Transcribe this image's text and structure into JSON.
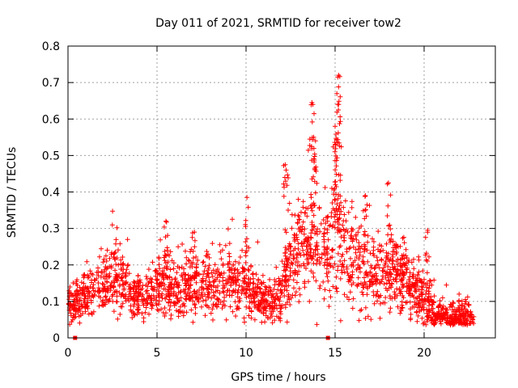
{
  "chart_data": {
    "type": "scatter",
    "title": "Day 011 of 2021, SRMTID for receiver tow2",
    "xlabel": "GPS time / hours",
    "ylabel": "SRMTID / TECUs",
    "xlim": [
      0,
      24
    ],
    "ylim": [
      0,
      0.8
    ],
    "xticks": [
      0,
      5,
      10,
      15,
      20
    ],
    "yticks": [
      0,
      0.1,
      0.2,
      0.3,
      0.4,
      0.5,
      0.6,
      0.7,
      0.8
    ],
    "ytick_labels": [
      "0",
      "0.1",
      "0.2",
      "0.3",
      "0.4",
      "0.5",
      "0.6",
      "0.7",
      "0.8"
    ],
    "grid": true,
    "marker": "+",
    "color": "#ff0000",
    "series": [
      {
        "name": "SRMTID",
        "profile": [
          [
            0.0,
            0.1,
            0.03
          ],
          [
            0.5,
            0.1,
            0.03
          ],
          [
            1.0,
            0.11,
            0.03
          ],
          [
            1.5,
            0.13,
            0.04
          ],
          [
            2.0,
            0.15,
            0.04
          ],
          [
            2.5,
            0.17,
            0.05
          ],
          [
            3.0,
            0.15,
            0.05
          ],
          [
            3.5,
            0.12,
            0.03
          ],
          [
            4.0,
            0.11,
            0.03
          ],
          [
            4.5,
            0.11,
            0.03
          ],
          [
            5.0,
            0.14,
            0.04
          ],
          [
            5.5,
            0.16,
            0.05
          ],
          [
            6.0,
            0.14,
            0.04
          ],
          [
            6.5,
            0.13,
            0.04
          ],
          [
            7.0,
            0.14,
            0.04
          ],
          [
            7.5,
            0.14,
            0.04
          ],
          [
            8.0,
            0.14,
            0.04
          ],
          [
            8.5,
            0.15,
            0.04
          ],
          [
            9.0,
            0.16,
            0.05
          ],
          [
            9.5,
            0.15,
            0.04
          ],
          [
            10.0,
            0.14,
            0.05
          ],
          [
            10.5,
            0.11,
            0.03
          ],
          [
            11.0,
            0.1,
            0.03
          ],
          [
            11.5,
            0.09,
            0.03
          ],
          [
            12.0,
            0.12,
            0.04
          ],
          [
            12.5,
            0.2,
            0.06
          ],
          [
            13.0,
            0.24,
            0.07
          ],
          [
            13.5,
            0.26,
            0.08
          ],
          [
            14.0,
            0.27,
            0.08
          ],
          [
            14.5,
            0.2,
            0.07
          ],
          [
            15.0,
            0.32,
            0.1
          ],
          [
            15.5,
            0.24,
            0.07
          ],
          [
            16.0,
            0.21,
            0.06
          ],
          [
            16.5,
            0.2,
            0.06
          ],
          [
            17.0,
            0.18,
            0.06
          ],
          [
            17.5,
            0.17,
            0.06
          ],
          [
            18.0,
            0.19,
            0.06
          ],
          [
            18.5,
            0.17,
            0.05
          ],
          [
            19.0,
            0.15,
            0.05
          ],
          [
            19.5,
            0.13,
            0.04
          ],
          [
            20.0,
            0.11,
            0.04
          ],
          [
            20.5,
            0.08,
            0.03
          ],
          [
            21.0,
            0.06,
            0.02
          ],
          [
            21.5,
            0.05,
            0.02
          ],
          [
            22.0,
            0.06,
            0.02
          ],
          [
            22.5,
            0.06,
            0.02
          ],
          [
            22.8,
            0.06,
            0.02
          ]
        ],
        "peaks": [
          [
            15.2,
            0.72
          ],
          [
            15.15,
            0.715
          ],
          [
            15.1,
            0.67
          ],
          [
            15.2,
            0.64
          ],
          [
            15.0,
            0.58
          ],
          [
            13.7,
            0.645
          ],
          [
            13.75,
            0.64
          ],
          [
            13.8,
            0.55
          ],
          [
            13.9,
            0.54
          ],
          [
            12.2,
            0.475
          ],
          [
            12.25,
            0.46
          ],
          [
            18.0,
            0.425
          ],
          [
            10.05,
            0.385
          ],
          [
            5.5,
            0.32
          ],
          [
            7.1,
            0.29
          ],
          [
            20.2,
            0.295
          ],
          [
            14.5,
            0.33
          ],
          [
            16.7,
            0.39
          ]
        ],
        "x_range": [
          0.0,
          22.8
        ],
        "n_points": 2200
      }
    ],
    "x_axis_markers": [
      0.4,
      14.6
    ]
  }
}
